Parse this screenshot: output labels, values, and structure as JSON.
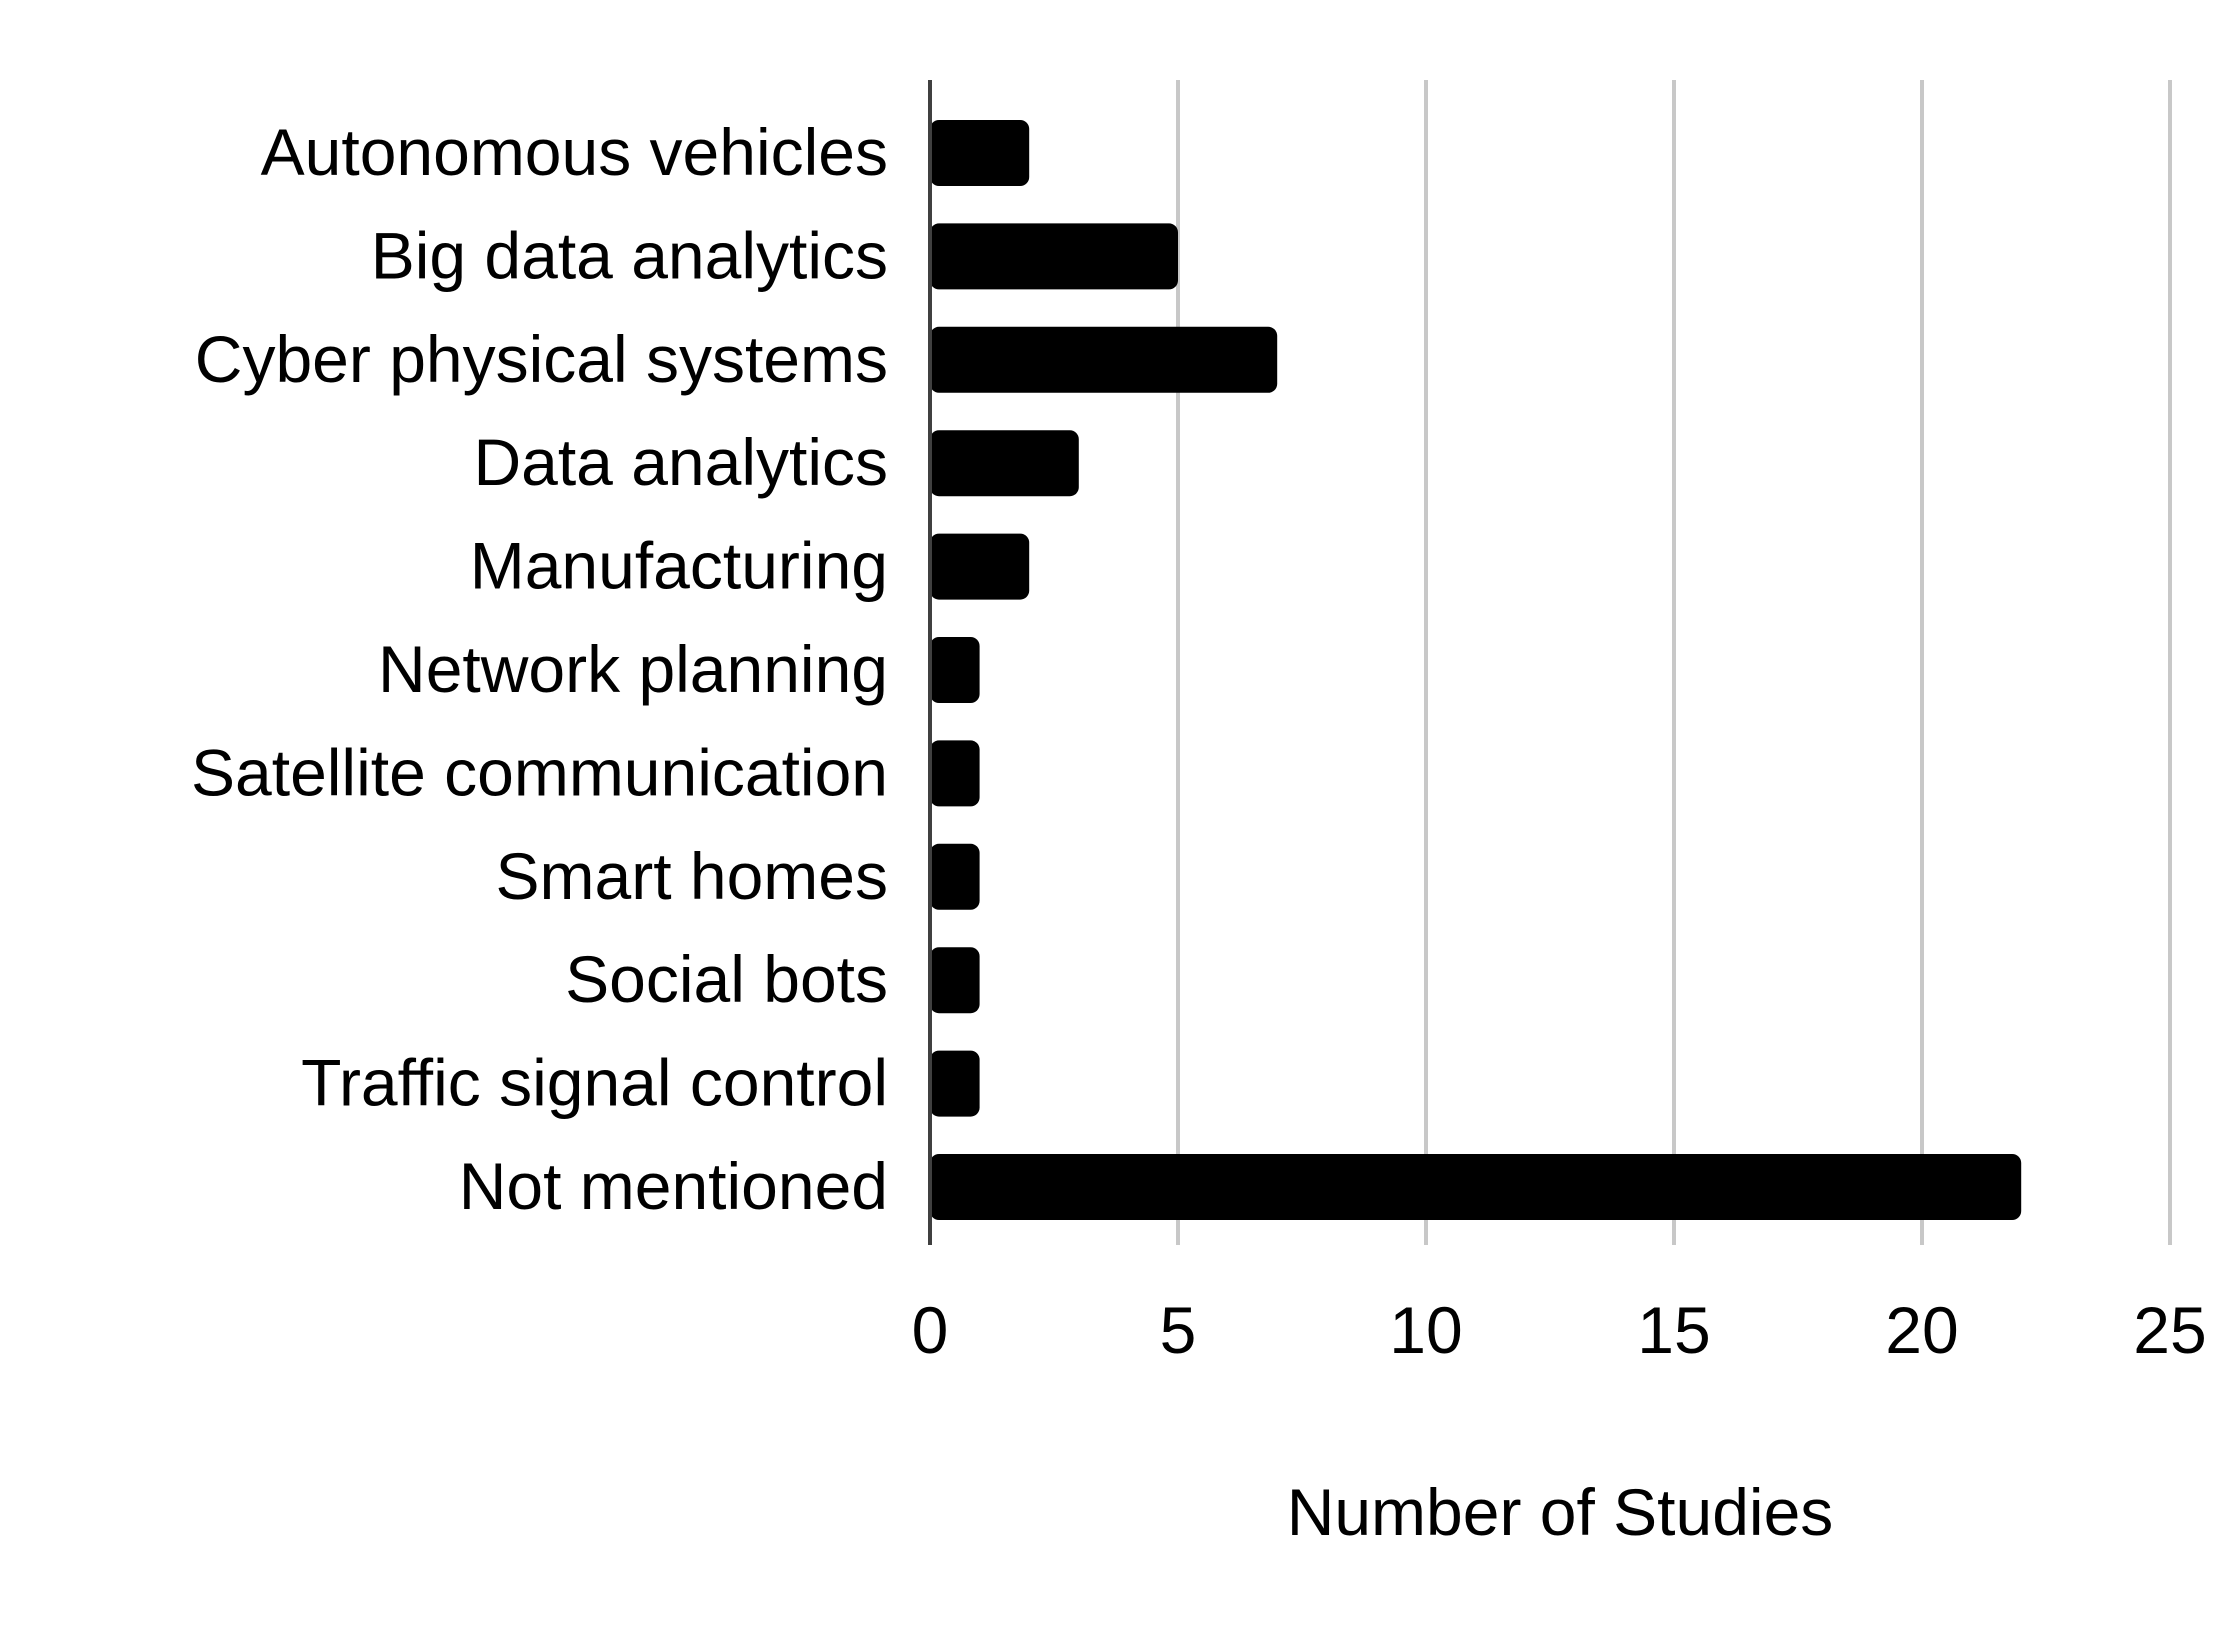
{
  "chart_data": {
    "type": "bar",
    "orientation": "horizontal",
    "categories": [
      "Autonomous vehicles",
      "Big data analytics",
      "Cyber physical systems",
      "Data analytics",
      "Manufacturing",
      "Network planning",
      "Satellite communication",
      "Smart homes",
      "Social bots",
      "Traffic signal control",
      "Not mentioned"
    ],
    "values": [
      2,
      5,
      7,
      3,
      2,
      1,
      1,
      1,
      1,
      1,
      22
    ],
    "title": "",
    "xlabel": "Number of Studies",
    "ylabel": "",
    "xlim": [
      0,
      25
    ],
    "xticks": [
      "0",
      "5",
      "10",
      "15",
      "20",
      "25"
    ],
    "grid": "vertical",
    "legend": "none",
    "bar_color": "#000000",
    "grid_color": "#c8c8c8",
    "axis_color": "#404040"
  }
}
